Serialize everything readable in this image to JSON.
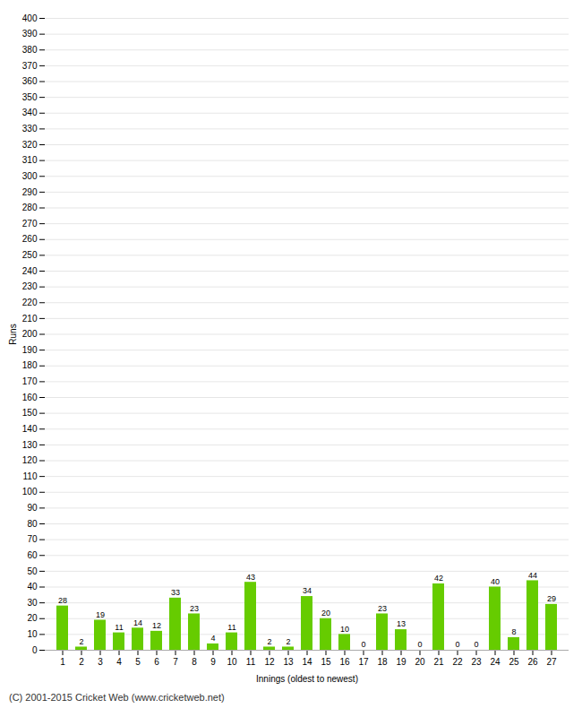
{
  "chart_data": {
    "type": "bar",
    "categories": [
      1,
      2,
      3,
      4,
      5,
      6,
      7,
      8,
      9,
      10,
      11,
      12,
      13,
      14,
      15,
      16,
      17,
      18,
      19,
      20,
      21,
      22,
      23,
      24,
      25,
      26,
      27
    ],
    "values": [
      28,
      2,
      19,
      11,
      14,
      12,
      33,
      23,
      4,
      11,
      43,
      2,
      2,
      34,
      20,
      10,
      0,
      23,
      13,
      0,
      42,
      0,
      0,
      40,
      8,
      44,
      29
    ],
    "color": "#66cc00",
    "xlabel": "Innings (oldest to newest)",
    "ylabel": "Runs",
    "ylim": [
      0,
      400
    ],
    "yticks": [
      0,
      10,
      20,
      30,
      40,
      50,
      60,
      70,
      80,
      90,
      100,
      110,
      120,
      130,
      140,
      150,
      160,
      170,
      180,
      190,
      200,
      210,
      220,
      230,
      240,
      250,
      260,
      270,
      280,
      290,
      300,
      310,
      320,
      330,
      340,
      350,
      360,
      370,
      380,
      390,
      400
    ],
    "grid": true,
    "data_labels": true,
    "caption": "(C) 2001-2015 Cricket Web (www.cricketweb.net)"
  }
}
